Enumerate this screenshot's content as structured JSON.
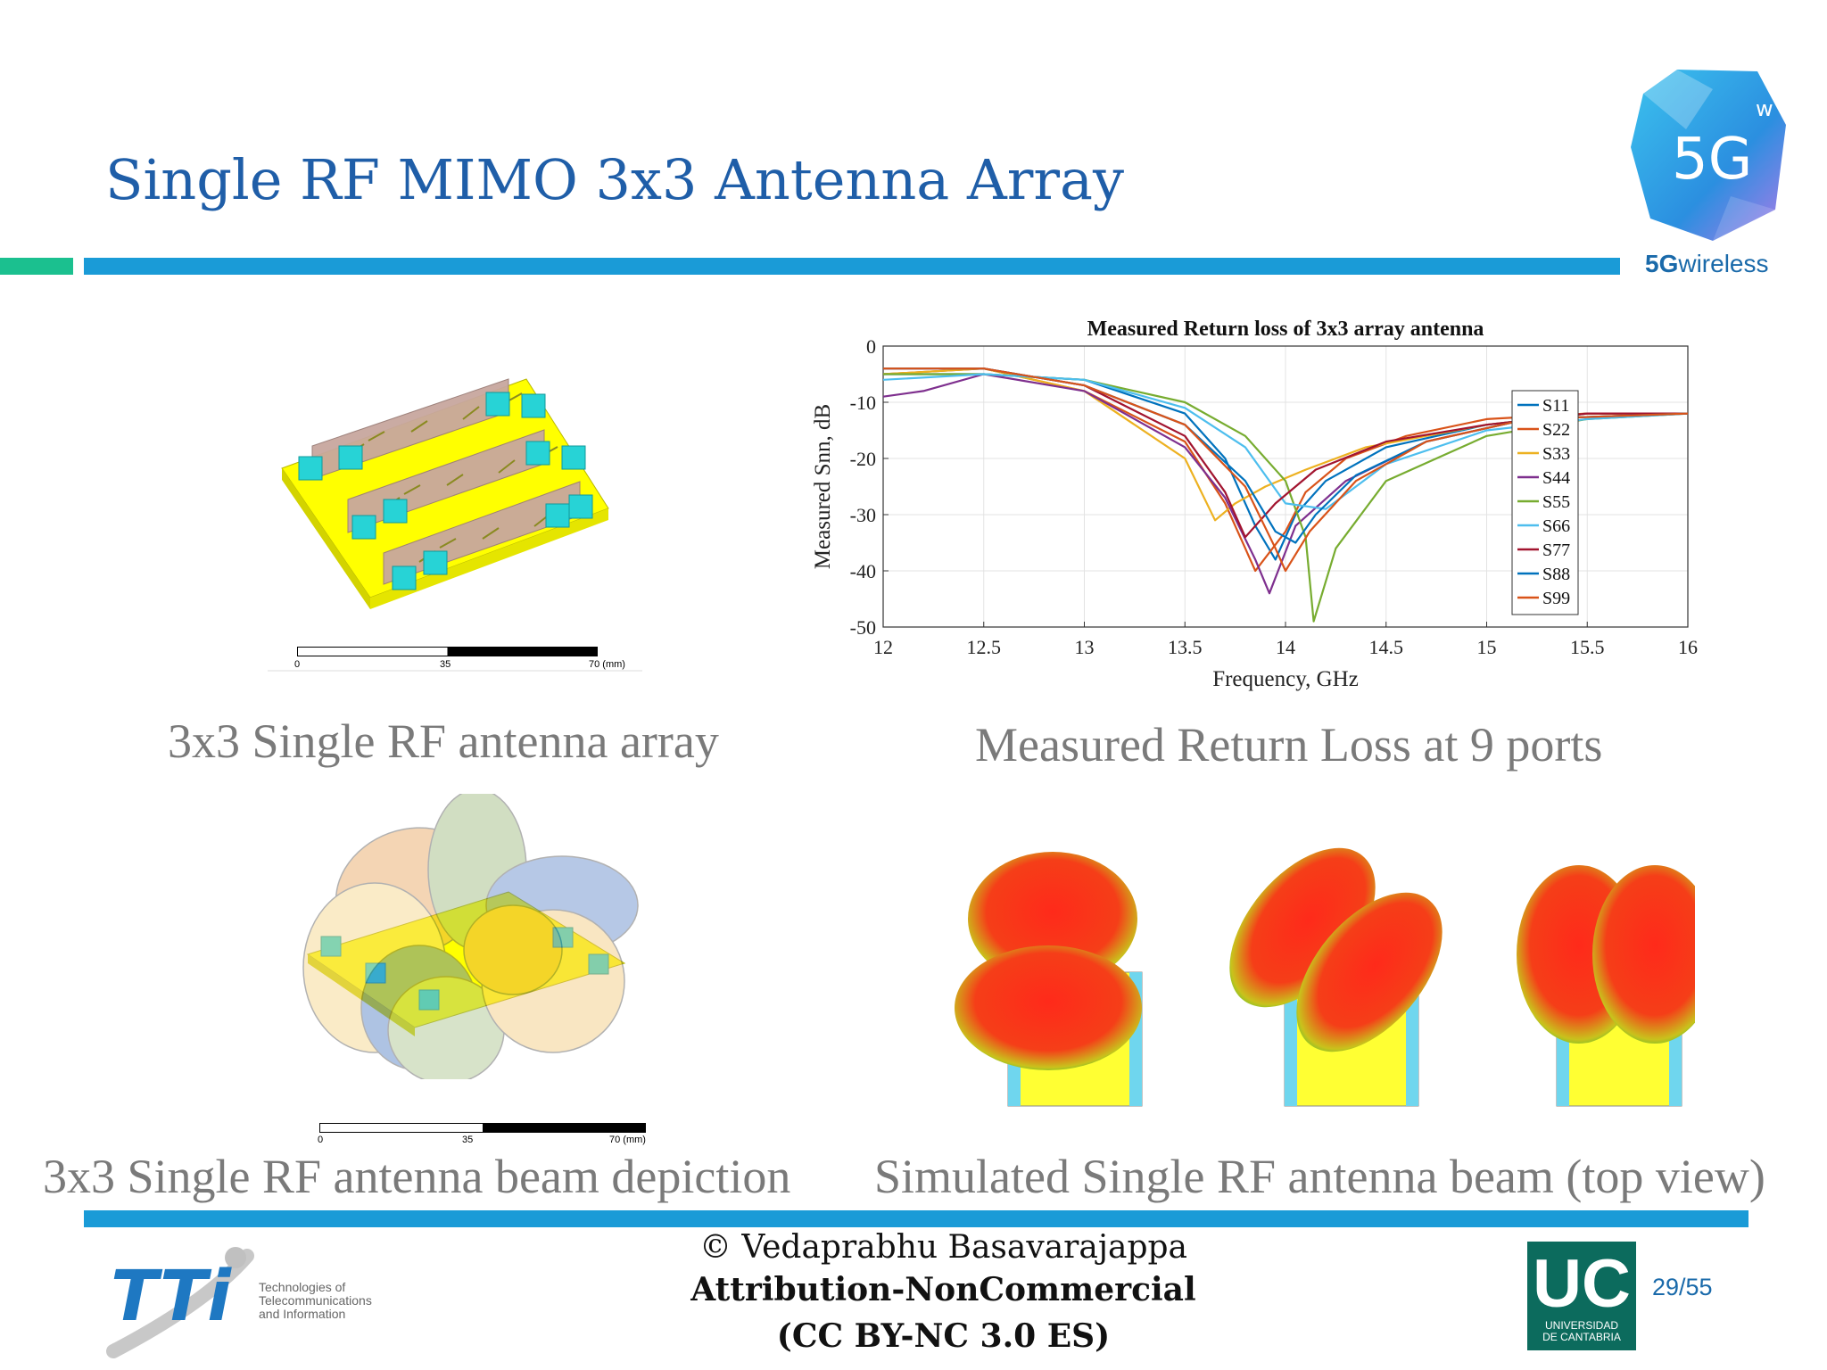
{
  "slide": {
    "title": "Single RF MIMO 3x3 Antenna Array",
    "accent_green": "#1bc08f",
    "accent_blue": "#1a9bd7",
    "title_color": "#1f5ea8"
  },
  "logo_5g": {
    "badge": "5G",
    "superscript": "w",
    "wordmark_bold": "5G",
    "wordmark_rest": "wireless"
  },
  "figures": {
    "array_caption": "3x3 Single RF antenna array",
    "return_loss_caption": "Measured Return Loss at 9 ports",
    "beam_caption": "3x3 Single RF antenna beam depiction",
    "sim_caption": "Simulated Single RF antenna beam (top view)",
    "scale_labels": [
      "0",
      "35",
      "70 (mm)"
    ]
  },
  "chart_data": {
    "type": "line",
    "title": "Measured Return loss of 3x3 array antenna",
    "xlabel": "Frequency, GHz",
    "ylabel": "Measured Snn, dB",
    "xlim": [
      12,
      16
    ],
    "ylim": [
      -50,
      0
    ],
    "xticks": [
      12,
      12.5,
      13,
      13.5,
      14,
      14.5,
      15,
      15.5,
      16
    ],
    "xtick_labels": [
      "12",
      "12.5",
      "13",
      "13.5",
      "14",
      "14.5",
      "15",
      "15.5",
      "16"
    ],
    "yticks": [
      0,
      -10,
      -20,
      -30,
      -40,
      -50
    ],
    "ytick_labels": [
      "0",
      "-10",
      "-20",
      "-30",
      "-40",
      "-50"
    ],
    "grid": true,
    "legend_position": "right",
    "series": [
      {
        "name": "S11",
        "color": "#0072bd",
        "x": [
          12,
          12.5,
          13,
          13.5,
          13.7,
          13.85,
          13.95,
          14.05,
          14.2,
          14.5,
          15,
          15.5,
          16
        ],
        "y": [
          -5,
          -5,
          -6,
          -12,
          -20,
          -32,
          -38,
          -30,
          -24,
          -18,
          -14,
          -12,
          -12
        ]
      },
      {
        "name": "S22",
        "color": "#d95319",
        "x": [
          12,
          12.5,
          13,
          13.5,
          13.7,
          13.85,
          14,
          14.1,
          14.3,
          14.6,
          15,
          15.5,
          16
        ],
        "y": [
          -5,
          -4,
          -8,
          -17,
          -28,
          -40,
          -33,
          -26,
          -20,
          -16,
          -13,
          -12,
          -12
        ]
      },
      {
        "name": "S33",
        "color": "#edb120",
        "x": [
          12,
          12.5,
          13,
          13.5,
          13.65,
          13.75,
          13.9,
          14.1,
          14.4,
          15,
          15.5,
          16
        ],
        "y": [
          -5,
          -4,
          -8,
          -20,
          -31,
          -28,
          -25,
          -22,
          -18,
          -14,
          -12,
          -12
        ]
      },
      {
        "name": "S44",
        "color": "#7e2f8e",
        "x": [
          12,
          12.2,
          12.5,
          13,
          13.5,
          13.7,
          13.85,
          13.92,
          14.05,
          14.3,
          14.7,
          15.2,
          16
        ],
        "y": [
          -9,
          -8,
          -5,
          -8,
          -18,
          -27,
          -38,
          -44,
          -32,
          -24,
          -17,
          -13,
          -12
        ]
      },
      {
        "name": "S55",
        "color": "#77ac30",
        "x": [
          12,
          12.5,
          13,
          13.5,
          13.8,
          14,
          14.1,
          14.14,
          14.25,
          14.5,
          15,
          15.5,
          16
        ],
        "y": [
          -5,
          -5,
          -6,
          -10,
          -16,
          -24,
          -34,
          -49,
          -36,
          -24,
          -16,
          -13,
          -12
        ]
      },
      {
        "name": "S66",
        "color": "#4dbeee",
        "x": [
          12,
          12.5,
          13,
          13.5,
          13.8,
          14,
          14.2,
          14.5,
          15,
          15.5,
          16
        ],
        "y": [
          -6,
          -5,
          -6,
          -11,
          -18,
          -28,
          -29,
          -21,
          -15,
          -13,
          -12
        ]
      },
      {
        "name": "S77",
        "color": "#a2142f",
        "x": [
          12,
          12.5,
          13,
          13.5,
          13.7,
          13.8,
          13.95,
          14.15,
          14.5,
          15,
          15.5,
          16
        ],
        "y": [
          -4,
          -4,
          -7,
          -16,
          -26,
          -34,
          -28,
          -22,
          -17,
          -14,
          -12,
          -12
        ]
      },
      {
        "name": "S88",
        "color": "#0072bd",
        "x": [
          12,
          12.5,
          13,
          13.5,
          13.8,
          13.95,
          14.05,
          14.15,
          14.35,
          14.7,
          15.2,
          16
        ],
        "y": [
          -4,
          -4,
          -7,
          -14,
          -24,
          -33,
          -35,
          -30,
          -23,
          -17,
          -13,
          -12
        ]
      },
      {
        "name": "S99",
        "color": "#d95319",
        "x": [
          12,
          12.5,
          13,
          13.5,
          13.8,
          13.95,
          14,
          14.12,
          14.35,
          14.7,
          15.2,
          16
        ],
        "y": [
          -4,
          -4,
          -7,
          -14,
          -25,
          -36,
          -40,
          -33,
          -24,
          -17,
          -13,
          -12
        ]
      }
    ]
  },
  "footer": {
    "line1": "© Vedaprabhu Basavarajappa",
    "line2": "Attribution-NonCommercial",
    "line3": "(CC BY-NC 3.0 ES)",
    "tti_mark": "TTi",
    "tti_sub": [
      "Technologies of",
      "Telecommunications",
      "and Information"
    ],
    "uc_mark": "UC",
    "uc_sub": [
      "UNIVERSIDAD",
      "DE CANTABRIA"
    ],
    "page": "29/55"
  }
}
